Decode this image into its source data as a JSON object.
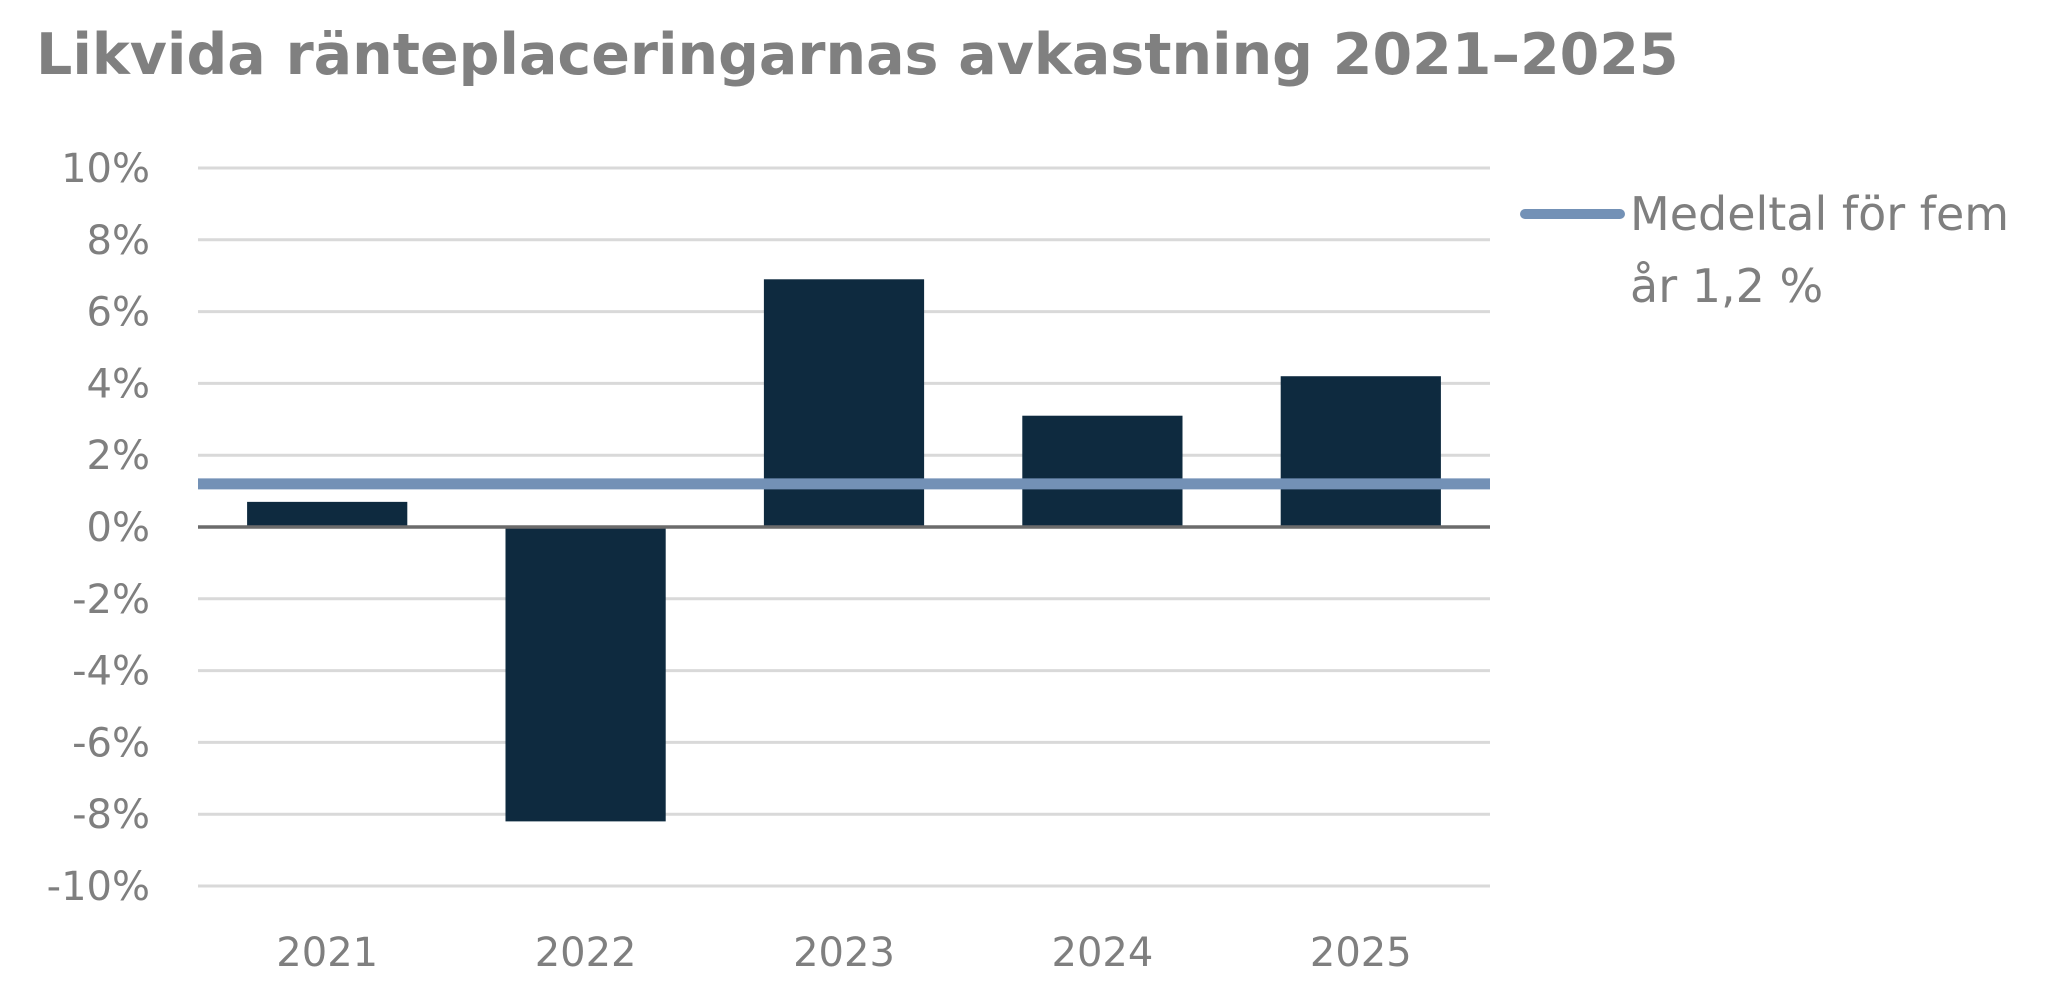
{
  "chart_data": {
    "type": "bar",
    "title": "Likvida ränteplaceringarnas avkastning 2021–2025",
    "categories": [
      "2021",
      "2022",
      "2023",
      "2024",
      "2025"
    ],
    "series": [
      {
        "values": [
          0.7,
          -8.2,
          6.9,
          3.1,
          4.2
        ]
      }
    ],
    "reference_line": {
      "value": 1.2,
      "legend_lines": [
        "Medeltal för fem",
        "år 1,2 %"
      ]
    },
    "ylim": [
      -10,
      10
    ],
    "yticks": [
      10,
      8,
      6,
      4,
      2,
      0,
      -2,
      -4,
      -6,
      -8,
      -10
    ],
    "ytick_labels": [
      "10%",
      "8%",
      "6%",
      "4%",
      "2%",
      "0%",
      "-2%",
      "-4%",
      "-6%",
      "-8%",
      "-10%"
    ],
    "xlabel": "",
    "ylabel": "",
    "grid": true,
    "legend_position": "top-right",
    "colors": {
      "bar": "#0e2a3f",
      "reference_line": "#7391b6",
      "grid": "#d9d9d9",
      "zero_line": "#6b6b6b",
      "text": "#7f7f7f"
    }
  }
}
